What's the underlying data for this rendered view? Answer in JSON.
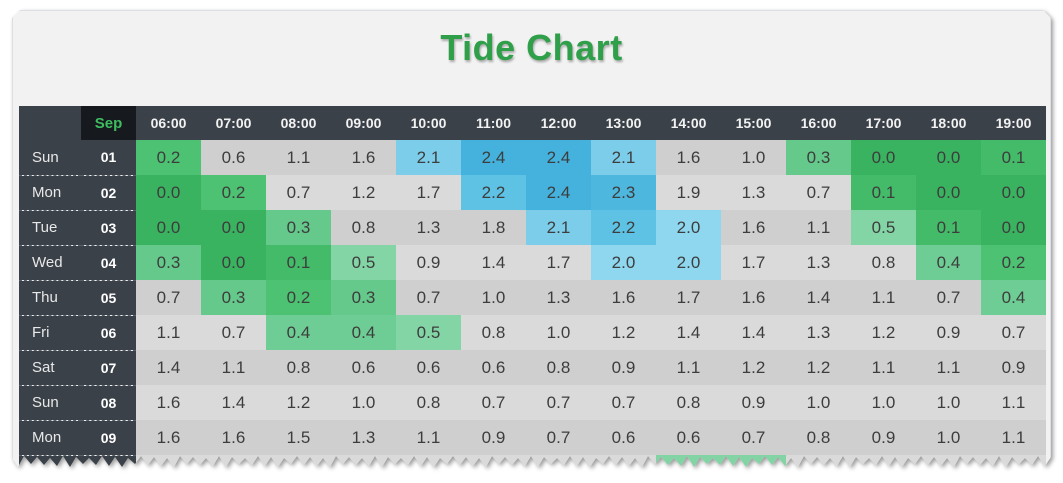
{
  "title": "Tide Chart",
  "chart_data": {
    "type": "heatmap",
    "title": "Tide Chart",
    "month_label": "Sep",
    "x": [
      "06:00",
      "07:00",
      "08:00",
      "09:00",
      "10:00",
      "11:00",
      "12:00",
      "13:00",
      "14:00",
      "15:00",
      "16:00",
      "17:00",
      "18:00",
      "19:00"
    ],
    "rows": [
      {
        "day": "Sun",
        "date": "01",
        "values": [
          "0.2",
          "0.6",
          "1.1",
          "1.6",
          "2.1",
          "2.4",
          "2.4",
          "2.1",
          "1.6",
          "1.0",
          "0.3",
          "0.0",
          "0.0",
          "0.1"
        ]
      },
      {
        "day": "Mon",
        "date": "02",
        "values": [
          "0.0",
          "0.2",
          "0.7",
          "1.2",
          "1.7",
          "2.2",
          "2.4",
          "2.3",
          "1.9",
          "1.3",
          "0.7",
          "0.1",
          "0.0",
          "0.0"
        ]
      },
      {
        "day": "Tue",
        "date": "03",
        "values": [
          "0.0",
          "0.0",
          "0.3",
          "0.8",
          "1.3",
          "1.8",
          "2.1",
          "2.2",
          "2.0",
          "1.6",
          "1.1",
          "0.5",
          "0.1",
          "0.0"
        ]
      },
      {
        "day": "Wed",
        "date": "04",
        "values": [
          "0.3",
          "0.0",
          "0.1",
          "0.5",
          "0.9",
          "1.4",
          "1.7",
          "2.0",
          "2.0",
          "1.7",
          "1.3",
          "0.8",
          "0.4",
          "0.2"
        ]
      },
      {
        "day": "Thu",
        "date": "05",
        "values": [
          "0.7",
          "0.3",
          "0.2",
          "0.3",
          "0.7",
          "1.0",
          "1.3",
          "1.6",
          "1.7",
          "1.6",
          "1.4",
          "1.1",
          "0.7",
          "0.4"
        ]
      },
      {
        "day": "Fri",
        "date": "06",
        "values": [
          "1.1",
          "0.7",
          "0.4",
          "0.4",
          "0.5",
          "0.8",
          "1.0",
          "1.2",
          "1.4",
          "1.4",
          "1.3",
          "1.2",
          "0.9",
          "0.7"
        ]
      },
      {
        "day": "Sat",
        "date": "07",
        "values": [
          "1.4",
          "1.1",
          "0.8",
          "0.6",
          "0.6",
          "0.6",
          "0.8",
          "0.9",
          "1.1",
          "1.2",
          "1.2",
          "1.1",
          "1.1",
          "0.9"
        ]
      },
      {
        "day": "Sun",
        "date": "08",
        "values": [
          "1.6",
          "1.4",
          "1.2",
          "1.0",
          "0.8",
          "0.7",
          "0.7",
          "0.7",
          "0.8",
          "0.9",
          "1.0",
          "1.0",
          "1.0",
          "1.1"
        ]
      },
      {
        "day": "Mon",
        "date": "09",
        "values": [
          "1.6",
          "1.6",
          "1.5",
          "1.3",
          "1.1",
          "0.9",
          "0.7",
          "0.6",
          "0.6",
          "0.7",
          "0.8",
          "0.9",
          "1.0",
          "1.1"
        ]
      }
    ],
    "partial_next_row": {
      "colored_columns": [
        "14:00",
        "15:00"
      ],
      "color": "#82d4a4"
    },
    "color_rules": {
      "low_green_max": 0.5,
      "high_blue_min": 2.0
    },
    "legend": "none",
    "grid": "off"
  },
  "colors": {
    "title_green": "#2f9f4a",
    "panel_bg": "#f2f2f2",
    "header_bg": "#3a4149",
    "month_cell_bg": "#16191d",
    "month_text": "#3fbc60",
    "header_text": "#f2f2f2",
    "day_text": "#e8e8e8",
    "value_text": "#3d3d3d",
    "row_gray_odd": "#cfcfcf",
    "row_gray_even": "#dadada",
    "green_scale": {
      "0.0": "#3ab360",
      "0.1": "#43bb69",
      "0.2": "#4cc272",
      "0.3": "#64c98b",
      "0.4": "#6ecd94",
      "0.5": "#83d5a6"
    },
    "blue_scale": {
      "2.0": "#8ed7ef",
      "2.1": "#7bcdea",
      "2.2": "#5ec2e4",
      "2.3": "#4db7de",
      "2.4": "#44b2dc"
    }
  }
}
